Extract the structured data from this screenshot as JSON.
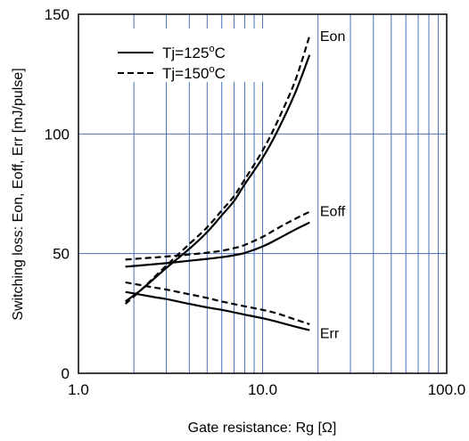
{
  "chart_data": {
    "type": "line",
    "xlabel": "Gate resistance: Rg [Ω]",
    "ylabel": "Switching loss: Eon, Eoff, Err [mJ/pulse]",
    "x_scale": "log",
    "xlim": [
      1.0,
      100.0
    ],
    "ylim": [
      0,
      150
    ],
    "x_ticks": [
      1.0,
      10.0,
      100.0
    ],
    "x_tick_labels": [
      "1.0",
      "10.0",
      "100.0"
    ],
    "y_ticks": [
      0,
      50,
      100,
      150
    ],
    "y_tick_labels": [
      "0",
      "50",
      "100",
      "150"
    ],
    "grid": true,
    "grid_color": "#4a72b8",
    "legend": {
      "placement": "top-left",
      "entries": [
        {
          "label": "Tj=125",
          "sup": "o",
          "unit": "C",
          "style": "solid"
        },
        {
          "label": "Tj=150",
          "sup": "o",
          "unit": "C",
          "style": "dashed"
        }
      ]
    },
    "curve_labels": [
      {
        "text": "Eon",
        "x": 20.5,
        "y": 141
      },
      {
        "text": "Eoff",
        "x": 20.5,
        "y": 68
      },
      {
        "text": "Err",
        "x": 20.5,
        "y": 17
      }
    ],
    "series": [
      {
        "curve": "Eon",
        "tj": "125",
        "style": "solid",
        "x": [
          1.8,
          2.2,
          3,
          4,
          5,
          6,
          7,
          8,
          10,
          12,
          15,
          18
        ],
        "y": [
          30,
          35,
          44,
          52,
          59,
          66,
          72,
          79,
          90,
          101,
          117,
          133
        ]
      },
      {
        "curve": "Eon",
        "tj": "150",
        "style": "dashed",
        "x": [
          1.8,
          2.2,
          3,
          4,
          5,
          6,
          7,
          8,
          10,
          12,
          15,
          18
        ],
        "y": [
          29,
          35,
          45,
          54,
          61,
          68,
          74,
          81,
          93,
          105,
          122,
          141
        ]
      },
      {
        "curve": "Eoff",
        "tj": "125",
        "style": "solid",
        "x": [
          1.8,
          2.5,
          3,
          4,
          5,
          6,
          7,
          8,
          10,
          12,
          15,
          18
        ],
        "y": [
          44.5,
          45.5,
          46,
          47,
          47.8,
          48.5,
          49.3,
          50.3,
          53,
          56,
          60,
          63
        ]
      },
      {
        "curve": "Eoff",
        "tj": "150",
        "style": "dashed",
        "x": [
          1.8,
          2.5,
          3,
          4,
          5,
          6,
          7,
          8,
          10,
          12,
          15,
          18
        ],
        "y": [
          47.5,
          48.3,
          48.8,
          49.6,
          50.4,
          51.2,
          52.3,
          53.6,
          57,
          60.5,
          64.5,
          67.5
        ]
      },
      {
        "curve": "Err",
        "tj": "125",
        "style": "solid",
        "x": [
          1.8,
          2.5,
          3,
          4,
          5,
          6,
          8,
          10,
          12,
          15,
          18
        ],
        "y": [
          34,
          32,
          31,
          29,
          27.5,
          26.5,
          24.5,
          23,
          21.5,
          19.5,
          18
        ]
      },
      {
        "curve": "Err",
        "tj": "150",
        "style": "dashed",
        "x": [
          1.8,
          2.5,
          3,
          4,
          5,
          6,
          8,
          10,
          12,
          15,
          18
        ],
        "y": [
          38,
          36,
          35,
          33,
          31.5,
          30,
          28,
          26.5,
          25,
          22.5,
          20.5
        ]
      }
    ]
  }
}
